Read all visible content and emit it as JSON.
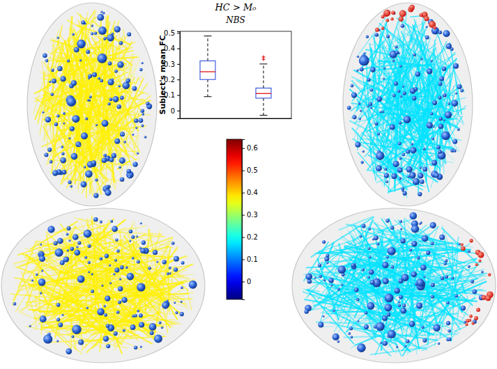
{
  "chart_data": {
    "type": "box",
    "title": "HC > M₀",
    "subtitle": "NBS",
    "y_label": "Subject's mean FC",
    "categories": [
      null,
      null
    ],
    "ylim": [
      -0.05,
      0.51
    ],
    "yticks": [
      0,
      0.1,
      0.2,
      0.3,
      0.4,
      0.5
    ],
    "tick_labels": "y",
    "color": "#1f3fd8",
    "boxes": [
      {
        "whisker_low": 0.09,
        "q1": 0.2,
        "median": 0.25,
        "q3": 0.32,
        "whisker_high": 0.48,
        "outliers": []
      },
      {
        "whisker_low": -0.03,
        "q1": 0.08,
        "median": 0.11,
        "q3": 0.145,
        "whisker_high": 0.3,
        "outliers": [
          0.33,
          0.345
        ]
      }
    ],
    "colorbar": {
      "range": [
        -0.08,
        0.64
      ],
      "ticks": [
        0,
        0.1,
        0.2,
        0.3,
        0.4,
        0.5,
        0.6
      ]
    },
    "brain_edge_fc": [
      0.38,
      0.17,
      0.38,
      0.17
    ]
  }
}
